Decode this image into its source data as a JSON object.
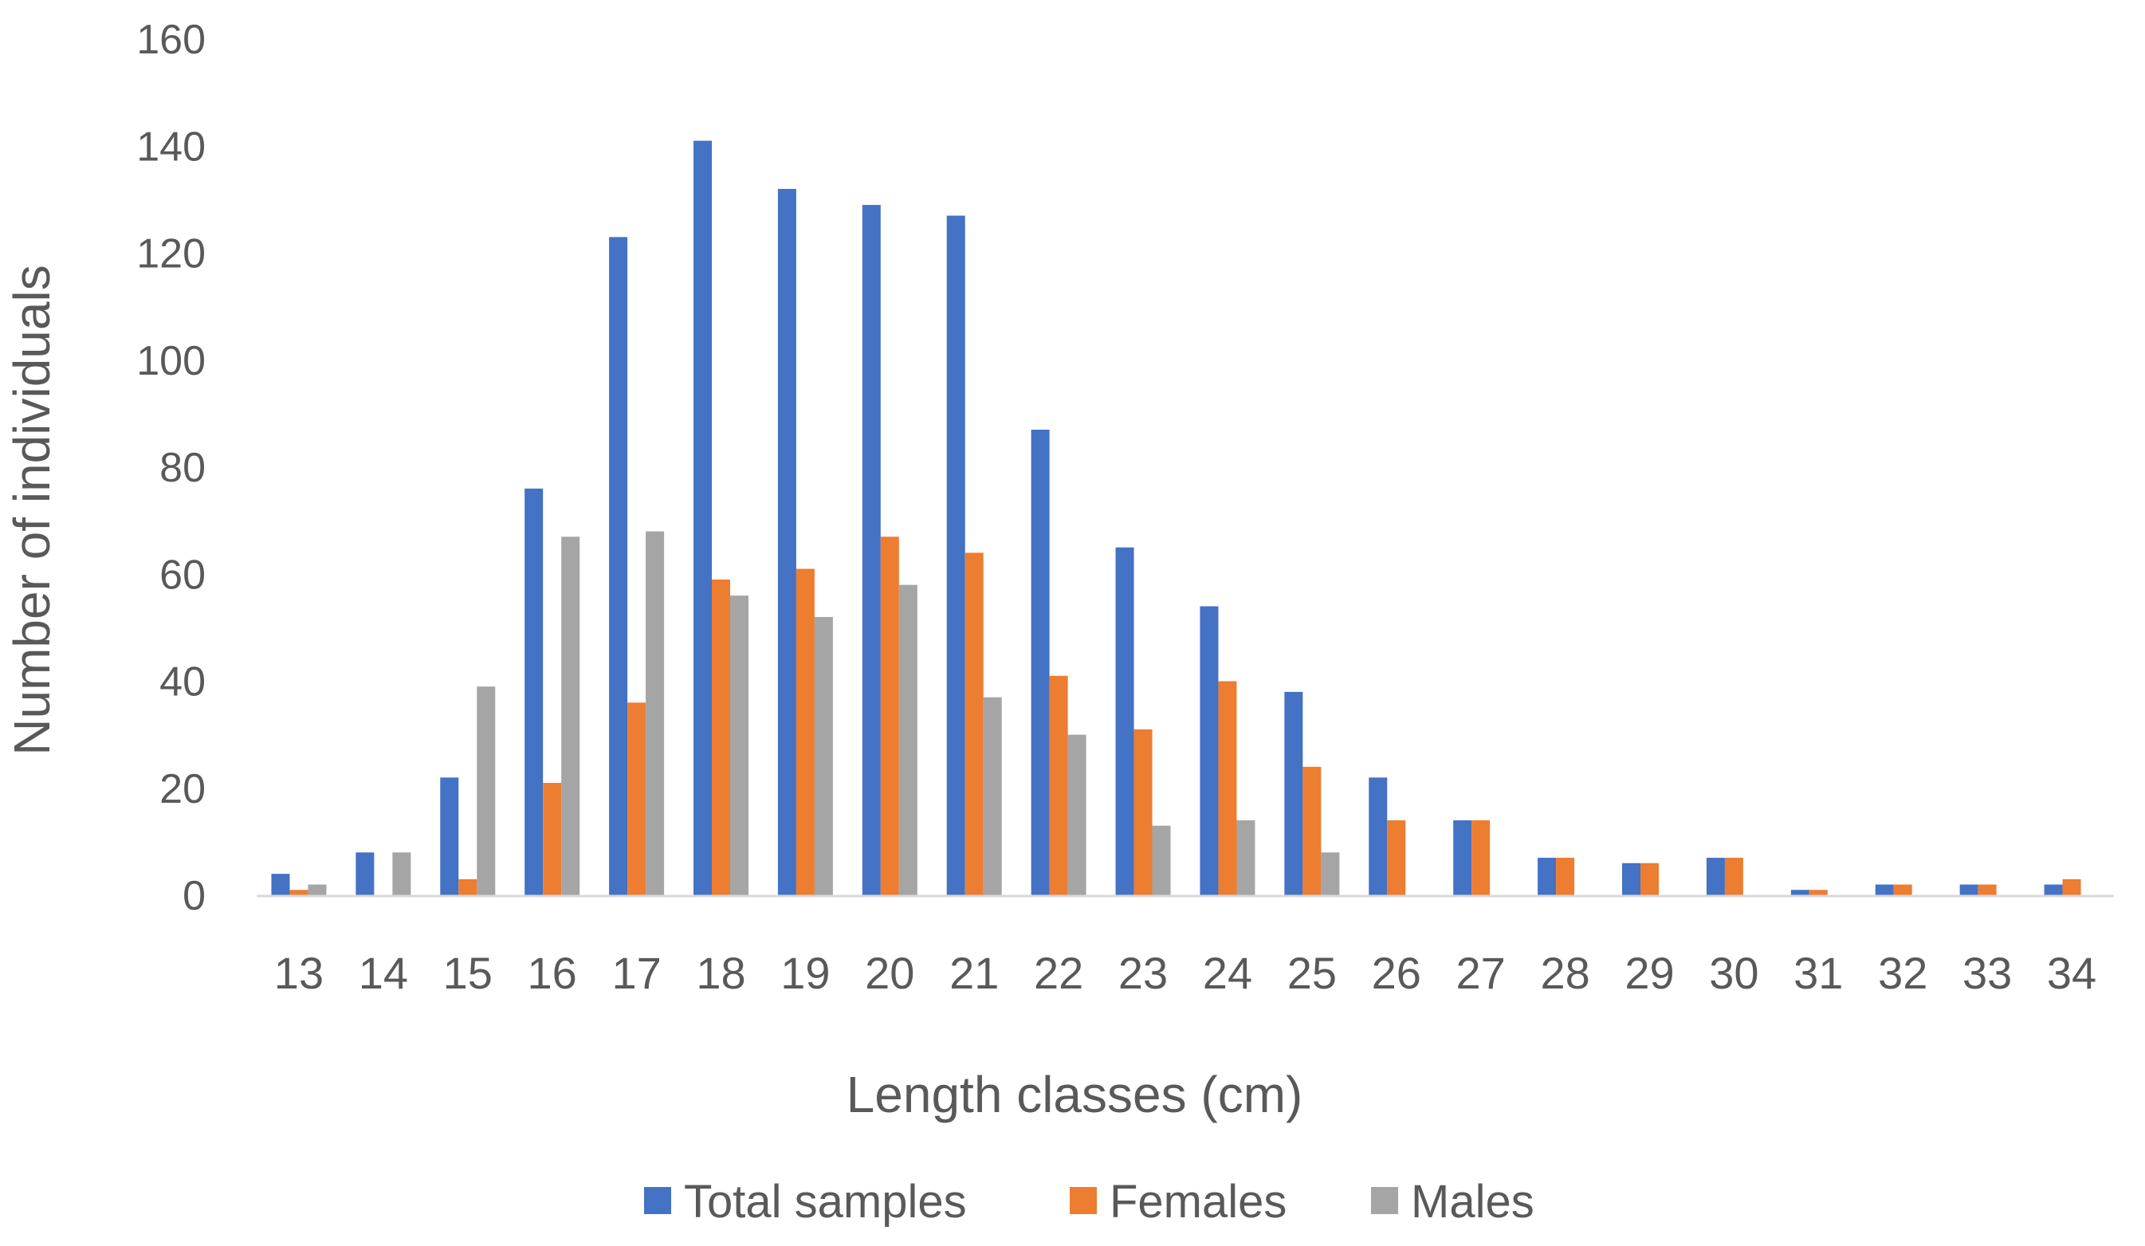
{
  "chart_data": {
    "type": "bar",
    "title": "",
    "xlabel": "Length classes (cm)",
    "ylabel": "Number of individuals",
    "ylim": [
      0,
      160
    ],
    "yticks": [
      0,
      20,
      40,
      60,
      80,
      100,
      120,
      140,
      160
    ],
    "grid": false,
    "legend_position": "bottom",
    "categories": [
      "13",
      "14",
      "15",
      "16",
      "17",
      "18",
      "19",
      "20",
      "21",
      "22",
      "23",
      "24",
      "25",
      "26",
      "27",
      "28",
      "29",
      "30",
      "31",
      "32",
      "33",
      "34"
    ],
    "series": [
      {
        "name": "Total samples",
        "color": "#4472C4",
        "values": [
          4,
          8,
          22,
          76,
          123,
          141,
          132,
          129,
          127,
          87,
          65,
          54,
          38,
          22,
          14,
          7,
          6,
          7,
          1,
          2,
          2,
          2
        ]
      },
      {
        "name": "Females",
        "color": "#ED7D31",
        "values": [
          1,
          0,
          3,
          21,
          36,
          59,
          61,
          67,
          64,
          41,
          31,
          40,
          24,
          14,
          14,
          7,
          6,
          7,
          1,
          2,
          2,
          3
        ]
      },
      {
        "name": "Males",
        "color": "#A5A5A5",
        "values": [
          2,
          8,
          39,
          67,
          68,
          56,
          52,
          58,
          37,
          30,
          13,
          14,
          8,
          0,
          0,
          0,
          0,
          0,
          0,
          0,
          0,
          0
        ]
      }
    ],
    "axis_color": "#D9D9D9"
  }
}
